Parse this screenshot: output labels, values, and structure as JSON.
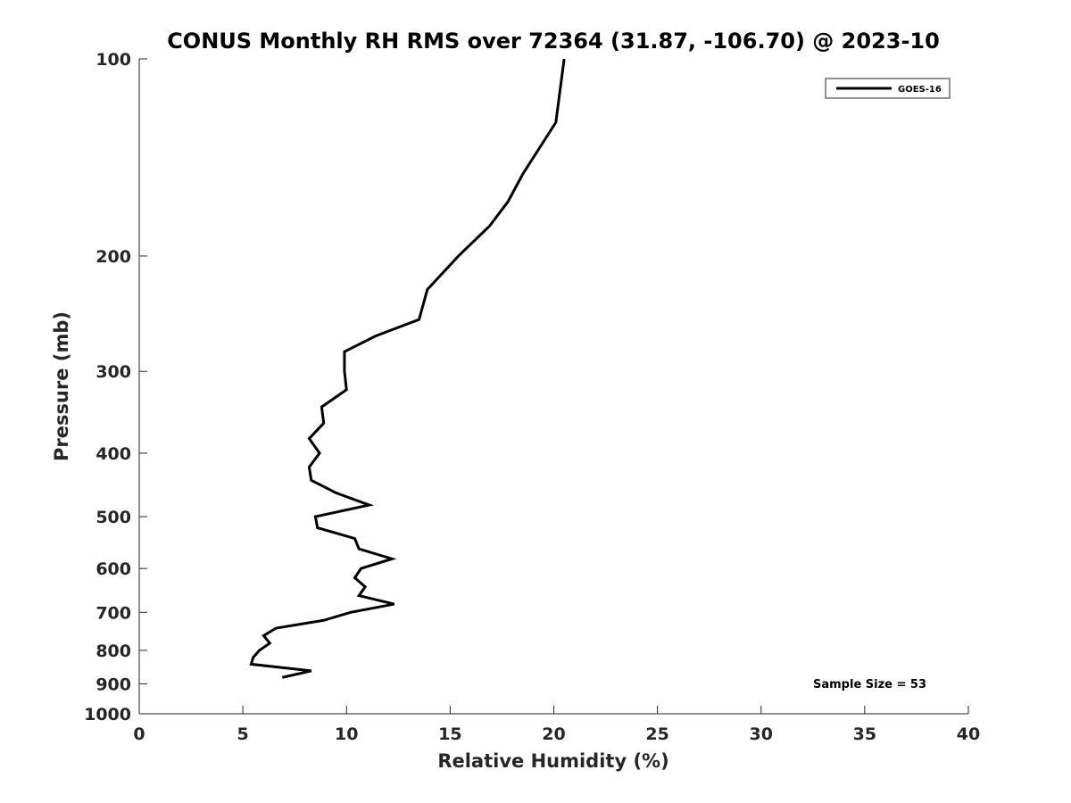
{
  "chart_data": {
    "type": "line",
    "title": "CONUS Monthly RH RMS over 72364 (31.87, -106.70) @ 2023-10",
    "xlabel": "Relative Humidity (%)",
    "ylabel": "Pressure (mb)",
    "xlim": [
      0,
      40
    ],
    "ylim": [
      100,
      1000
    ],
    "y_scale": "log",
    "y_reversed": true,
    "grid": false,
    "legend_position": "top-right",
    "xticks": [
      0,
      5,
      10,
      15,
      20,
      25,
      30,
      35,
      40
    ],
    "xtick_labels": [
      "0",
      "5",
      "10",
      "15",
      "20",
      "25",
      "30",
      "35",
      "40"
    ],
    "yticks": [
      100,
      200,
      300,
      400,
      500,
      600,
      700,
      800,
      900,
      1000
    ],
    "ytick_labels": [
      "100",
      "200",
      "300",
      "400",
      "500",
      "600",
      "700",
      "800",
      "900",
      "1000"
    ],
    "series": [
      {
        "name": "GOES-16",
        "color": "#000000",
        "points": [
          [
            20.5,
            100
          ],
          [
            20.1,
            125
          ],
          [
            18.5,
            150
          ],
          [
            17.8,
            165
          ],
          [
            16.9,
            180
          ],
          [
            15.4,
            200
          ],
          [
            13.9,
            225
          ],
          [
            13.5,
            250
          ],
          [
            11.4,
            265
          ],
          [
            9.9,
            280
          ],
          [
            9.9,
            300
          ],
          [
            10.0,
            320
          ],
          [
            8.8,
            340
          ],
          [
            8.9,
            360
          ],
          [
            8.2,
            380
          ],
          [
            8.7,
            400
          ],
          [
            8.2,
            420
          ],
          [
            8.3,
            440
          ],
          [
            9.5,
            460
          ],
          [
            11.1,
            480
          ],
          [
            8.5,
            500
          ],
          [
            8.6,
            520
          ],
          [
            10.4,
            540
          ],
          [
            10.6,
            560
          ],
          [
            12.2,
            580
          ],
          [
            10.7,
            600
          ],
          [
            10.4,
            620
          ],
          [
            10.9,
            640
          ],
          [
            10.6,
            660
          ],
          [
            12.3,
            680
          ],
          [
            10.2,
            700
          ],
          [
            8.9,
            720
          ],
          [
            6.6,
            740
          ],
          [
            6.0,
            760
          ],
          [
            6.3,
            780
          ],
          [
            5.8,
            800
          ],
          [
            5.5,
            820
          ],
          [
            5.4,
            840
          ],
          [
            8.3,
            860
          ],
          [
            6.9,
            880
          ]
        ]
      }
    ],
    "annotations": [
      {
        "text": "Sample Size = 53"
      }
    ]
  }
}
